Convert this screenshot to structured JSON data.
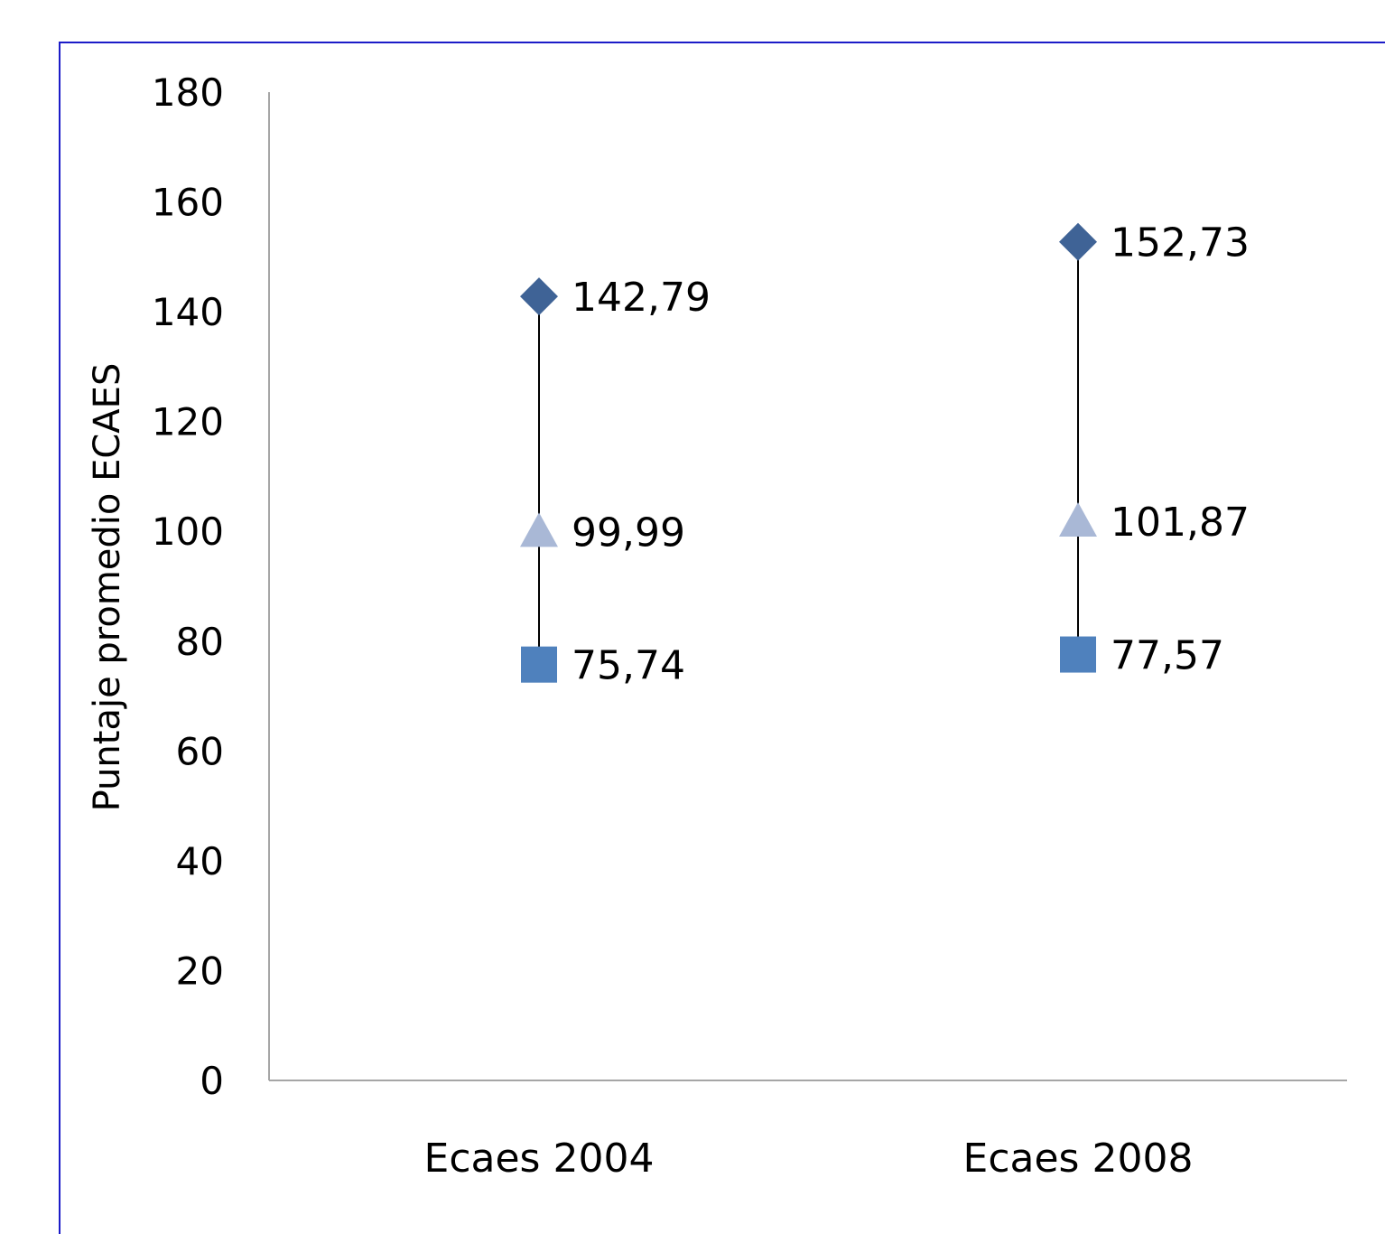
{
  "chart_data": {
    "type": "scatter",
    "subtype": "high-low-close",
    "ylabel": "Puntaje promedio ECAES",
    "xlabel": "",
    "title": "",
    "ylim": [
      0,
      180
    ],
    "ytick_step": 20,
    "yticks": [
      "0",
      "20",
      "40",
      "60",
      "80",
      "100",
      "120",
      "140",
      "160",
      "180"
    ],
    "categories": [
      "Ecaes 2004",
      "Ecaes 2008"
    ],
    "grid": false,
    "legend": "none",
    "series": [
      {
        "marker": "diamond",
        "color": "#3f6396",
        "values": [
          142.79,
          152.73
        ],
        "labels": [
          "142,79",
          "152,73"
        ]
      },
      {
        "marker": "triangle",
        "color": "#a9b8d6",
        "values": [
          99.99,
          101.87
        ],
        "labels": [
          "99,99",
          "101,87"
        ]
      },
      {
        "marker": "square",
        "color": "#4f81bd",
        "values": [
          75.74,
          77.57
        ],
        "labels": [
          "75,74",
          "77,57"
        ]
      }
    ],
    "hilo_line_color": "#000000",
    "frame_color": "#1c1cc8",
    "axis_color": "#a6a6a6"
  }
}
